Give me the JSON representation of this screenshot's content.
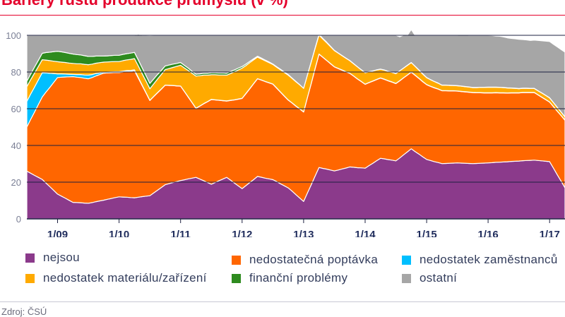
{
  "header": {
    "title": "Bariéry růstu produkce průmyslu (v %)"
  },
  "source": "Zdroj: ČSÚ",
  "colors": {
    "nejsou": "#8b3a8b",
    "poptavka": "#ff6600",
    "zamestnanci": "#00bfff",
    "material": "#ffaa00",
    "financni": "#2e8b1f",
    "ostatni": "#a6a6a6",
    "title": "#e4002b"
  },
  "chart_data": {
    "type": "area",
    "stacked": true,
    "title": "Bariéry růstu produkce průmyslu (v %)",
    "xlabel": "",
    "ylabel": "",
    "ylim": [
      0,
      100
    ],
    "yticks": [
      0,
      20,
      40,
      60,
      80,
      100
    ],
    "grid": true,
    "legend_position": "bottom",
    "x": [
      0,
      0.25,
      0.5,
      0.75,
      1,
      1.25,
      1.5,
      1.75,
      2,
      2.25,
      2.5,
      2.75,
      3,
      3.25,
      3.5,
      3.75,
      4,
      4.25,
      4.5,
      4.75,
      5,
      5.25,
      5.5,
      5.75,
      6,
      6.25,
      6.5,
      6.75,
      7,
      7.25,
      7.5,
      7.75,
      8,
      8.25,
      8.5,
      8.75,
      9,
      9.25,
      9.5,
      9.75,
      10,
      10.25,
      10.5,
      10.75,
      11,
      11.25,
      11.5,
      11.75,
      12,
      12.25,
      12.5,
      12.75,
      13,
      13.25,
      13.5,
      13.75,
      14,
      14.25,
      14.5,
      14.75,
      15,
      15.25,
      15.5,
      15.75,
      16,
      16.25,
      16.5,
      16.75,
      17,
      17.25,
      17.5,
      17.75,
      18,
      18.25,
      18.5,
      18.75,
      19,
      19.25,
      19.5,
      19.75,
      20,
      20.25,
      20.5,
      20.75,
      21,
      21.25,
      21.5,
      21.75,
      22,
      22.25,
      22.5,
      22.75,
      23,
      23.25,
      23.5,
      23.75,
      24,
      24.25,
      24.5,
      24.75,
      25,
      25.25,
      25.5,
      25.75,
      26,
      26.25,
      26.5,
      26.75,
      27,
      27.25,
      27.5,
      27.75,
      28,
      28.25,
      28.5,
      28.75,
      29,
      29.25,
      29.5,
      29.75,
      30,
      30.25,
      30.5,
      30.75,
      31,
      31.25,
      31.5,
      31.75,
      32,
      32.25,
      32.5,
      32.75,
      33,
      33.25,
      33.5,
      33.75,
      34,
      34.25,
      34.5,
      34.75,
      35
    ],
    "xrange": [
      0,
      35
    ],
    "xticks": [
      {
        "x": 2,
        "label": "1/09"
      },
      {
        "x": 6,
        "label": "1/10"
      },
      {
        "x": 10,
        "label": "1/11"
      },
      {
        "x": 14,
        "label": "1/12"
      },
      {
        "x": 18,
        "label": "1/13"
      },
      {
        "x": 22,
        "label": "1/14"
      },
      {
        "x": 26,
        "label": "1/15"
      },
      {
        "x": 30,
        "label": "1/16"
      },
      {
        "x": 34,
        "label": "1/17"
      }
    ],
    "series": [
      {
        "key": "nejsou",
        "name": "nejsou",
        "values": [
          26.0,
          24.9,
          23.7,
          22.6,
          21.5,
          19.5,
          17.5,
          15.5,
          13.5,
          12.4,
          11.3,
          10.1,
          9.0,
          8.9,
          8.8,
          8.6,
          8.5,
          8.9,
          9.4,
          9.8,
          10.2,
          10.7,
          11.1,
          11.6,
          12.0,
          11.9,
          11.8,
          11.6,
          11.5,
          11.8,
          12.1,
          12.4,
          12.6,
          14.1,
          15.6,
          17.1,
          18.6,
          19.2,
          19.8,
          20.3,
          20.9,
          21.3,
          21.8,
          22.2,
          22.6,
          21.7,
          20.8,
          19.8,
          18.9,
          19.8,
          20.8,
          21.7,
          22.6,
          21.1,
          19.5,
          18.0,
          16.5,
          18.1,
          19.8,
          21.4,
          23.1,
          22.7,
          22.2,
          21.8,
          21.4,
          20.3,
          19.1,
          18.0,
          16.9,
          15.1,
          13.2,
          11.4,
          9.5,
          14.1,
          18.7,
          23.4,
          28.0,
          27.5,
          27.1,
          26.6,
          26.1,
          26.6,
          27.2,
          27.7,
          28.3,
          28.1,
          27.9,
          27.8,
          27.6,
          29.0,
          30.3,
          31.7,
          33.0,
          32.7,
          32.3,
          32.0,
          31.6,
          33.2,
          34.9,
          36.5,
          38.2,
          36.7,
          35.3,
          33.8,
          32.4,
          31.8,
          31.2,
          30.7,
          30.1,
          30.2,
          30.3,
          30.4,
          30.5,
          30.4,
          30.3,
          30.2,
          30.1,
          30.2,
          30.3,
          30.4,
          30.5,
          30.6,
          30.8,
          30.9,
          31.0,
          31.1,
          31.3,
          31.4,
          31.5,
          31.7,
          31.8,
          31.9,
          32.0,
          31.8,
          31.6,
          31.4,
          31.2,
          27.6,
          24.0,
          20.5,
          16.9
        ]
      },
      {
        "key": "poptavka",
        "name": "nedostatečná poptávka",
        "values": [
          24.0,
          29.3,
          34.5,
          39.7,
          44.9,
          49.6,
          54.2,
          58.9,
          63.5,
          64.8,
          66.0,
          67.3,
          68.5,
          68.3,
          68.2,
          68.0,
          67.8,
          68.1,
          68.5,
          68.8,
          69.2,
          68.8,
          68.5,
          68.1,
          67.7,
          68.1,
          68.5,
          68.8,
          69.2,
          64.9,
          60.5,
          56.2,
          51.9,
          52.5,
          53.1,
          53.6,
          54.2,
          53.5,
          52.8,
          52.1,
          51.4,
          48.0,
          44.5,
          41.1,
          37.6,
          39.7,
          41.9,
          44.0,
          46.1,
          45.0,
          43.8,
          42.7,
          41.6,
          43.4,
          45.3,
          47.2,
          49.1,
          50.1,
          51.1,
          52.2,
          53.2,
          52.9,
          52.6,
          52.3,
          52.0,
          50.9,
          49.9,
          48.8,
          47.8,
          48.0,
          48.2,
          48.5,
          48.7,
          52.0,
          55.2,
          58.5,
          61.7,
          60.5,
          59.2,
          57.9,
          56.7,
          55.3,
          53.8,
          52.4,
          51.0,
          49.7,
          48.3,
          47.0,
          45.7,
          45.2,
          44.7,
          44.2,
          43.7,
          43.3,
          42.9,
          42.5,
          42.1,
          42.0,
          41.9,
          41.8,
          41.7,
          41.5,
          41.2,
          40.9,
          40.7,
          40.4,
          40.2,
          40.0,
          39.7,
          39.6,
          39.4,
          39.3,
          39.1,
          39.0,
          38.9,
          38.8,
          38.7,
          38.5,
          38.4,
          38.2,
          38.1,
          38.0,
          37.9,
          37.7,
          37.6,
          37.4,
          37.3,
          37.2,
          37.1,
          37.1,
          37.0,
          36.9,
          36.8,
          35.7,
          34.6,
          33.5,
          32.4,
          33.5,
          34.6,
          35.7,
          36.8
        ]
      },
      {
        "key": "zamestnanci",
        "name": "nedostatek zaměstnanců",
        "values": [
          14.0,
          13.8,
          13.6,
          13.4,
          13.2,
          10.4,
          7.6,
          4.8,
          2.0,
          1.8,
          1.6,
          1.4,
          1.2,
          1.4,
          1.6,
          1.8,
          2.0,
          1.6,
          1.3,
          0.9,
          0.5,
          0.5,
          0.5,
          0.5,
          0.5,
          0.5,
          0.5,
          0.5,
          0.5,
          0.4,
          0.3,
          0.2,
          0.1,
          0.1,
          0.1,
          0.1,
          0.1,
          0.1,
          0.1,
          0.1,
          0.1,
          0.1,
          0.1,
          0.1,
          0.1,
          0.1,
          0.1,
          0.1,
          0.1,
          0.1,
          0.1,
          0.1,
          0.1,
          0.1,
          0.1,
          0.1,
          0.1,
          0.1,
          0.1,
          0.1,
          0.1,
          0.1,
          0.1,
          0.1,
          0.1,
          0.1,
          0.1,
          0.1,
          0.1,
          0.1,
          0.1,
          0.1,
          0.1,
          0.1,
          0.1,
          0.1,
          0.1,
          0.1,
          0.1,
          0.1,
          0.1,
          0.1,
          0.1,
          0.1,
          0.1,
          0.1,
          0.1,
          0.1,
          0.1,
          0.1,
          0.1,
          0.1,
          0.1,
          0.1,
          0.1,
          0.1,
          0.1,
          0.1,
          0.1,
          0.1,
          0.1,
          0.1,
          0.1,
          0.1,
          0.1,
          0.1,
          0.1,
          0.1,
          0.1,
          0.1,
          0.1,
          0.1,
          0.1,
          0.1,
          0.1,
          0.1,
          0.1,
          0.1,
          0.1,
          0.1,
          0.1,
          0.1,
          0.1,
          0.1,
          0.1,
          0.1,
          0.1,
          0.1,
          0.1,
          0.1,
          0.1,
          0.1,
          0.1,
          0.1,
          0.1,
          0.1,
          0.1,
          0.1,
          0.1,
          0.1,
          0.1
        ]
      },
      {
        "key": "material",
        "name": "nedostatek materiálu/zařízení",
        "values": [
          8.0,
          7.8,
          7.6,
          7.3,
          7.1,
          7.0,
          6.9,
          6.7,
          6.6,
          6.4,
          6.3,
          6.1,
          6.0,
          5.9,
          5.9,
          5.8,
          5.7,
          5.7,
          5.6,
          5.6,
          5.5,
          5.5,
          5.5,
          5.5,
          5.5,
          5.7,
          5.8,
          6.0,
          6.1,
          6.2,
          6.2,
          6.3,
          6.3,
          6.8,
          7.4,
          7.9,
          8.4,
          9.1,
          9.8,
          10.6,
          11.3,
          12.8,
          14.4,
          15.9,
          17.5,
          16.5,
          15.5,
          14.4,
          13.4,
          13.6,
          13.7,
          13.9,
          14.0,
          14.6,
          15.2,
          15.8,
          16.4,
          15.2,
          14.1,
          12.9,
          11.7,
          11.4,
          11.2,
          10.9,
          10.6,
          11.3,
          12.1,
          12.8,
          13.5,
          13.3,
          13.2,
          13.0,
          12.8,
          12.2,
          11.6,
          10.9,
          10.3,
          9.9,
          9.6,
          9.2,
          8.8,
          8.3,
          7.8,
          7.3,
          6.8,
          6.6,
          6.5,
          6.3,
          6.2,
          5.8,
          5.4,
          5.1,
          4.7,
          4.9,
          5.0,
          5.2,
          5.3,
          5.3,
          5.2,
          5.2,
          5.1,
          4.8,
          4.4,
          4.1,
          3.7,
          3.5,
          3.3,
          3.1,
          2.9,
          2.9,
          2.9,
          2.8,
          2.8,
          2.8,
          2.7,
          2.7,
          2.6,
          2.7,
          2.8,
          2.9,
          3.0,
          3.0,
          2.9,
          2.9,
          2.8,
          2.7,
          2.5,
          2.4,
          2.2,
          2.2,
          2.2,
          2.1,
          2.1,
          2.1,
          2.2,
          2.2,
          2.2,
          2.1,
          2.0,
          1.8,
          1.7
        ]
      },
      {
        "key": "financni",
        "name": "finanční problémy",
        "values": [
          3.0,
          3.1,
          3.3,
          3.4,
          3.5,
          4.1,
          4.6,
          5.2,
          5.7,
          5.6,
          5.4,
          5.3,
          5.1,
          5.0,
          4.8,
          4.7,
          4.5,
          4.2,
          3.9,
          3.6,
          3.3,
          3.3,
          3.4,
          3.4,
          3.4,
          3.4,
          3.4,
          3.4,
          3.4,
          3.3,
          3.2,
          3.0,
          2.9,
          2.7,
          2.5,
          2.2,
          2.0,
          1.9,
          1.8,
          1.6,
          1.5,
          1.4,
          1.3,
          1.1,
          1.0,
          1.0,
          1.1,
          1.1,
          1.1,
          1.1,
          1.1,
          1.1,
          1.1,
          1.1,
          1.0,
          1.0,
          0.9,
          0.8,
          0.7,
          0.6,
          0.5,
          0.5,
          0.4,
          0.4,
          0.3,
          0.3,
          0.3,
          0.3,
          0.3,
          0.2,
          0.2,
          0.1,
          0.0,
          0.1,
          0.2,
          0.3,
          0.4,
          0.3,
          0.3,
          0.2,
          0.1,
          0.1,
          0.1,
          0.1,
          0.1,
          0.1,
          0.1,
          0.1,
          0.1,
          0.1,
          0.1,
          0.1,
          0.1,
          0.1,
          0.1,
          0.1,
          0.1,
          0.1,
          0.1,
          0.1,
          0.1,
          0.1,
          0.1,
          0.1,
          0.1,
          0.1,
          0.1,
          0.1,
          0.1,
          0.1,
          0.1,
          0.1,
          0.1,
          0.1,
          0.1,
          0.1,
          0.1,
          0.1,
          0.1,
          0.1,
          0.1,
          0.1,
          0.1,
          0.1,
          0.1,
          0.1,
          0.1,
          0.1,
          0.1,
          0.1,
          0.1,
          0.1,
          0.1,
          0.1,
          0.1,
          0.1,
          0.1,
          0.1,
          0.1,
          0.1,
          0.1
        ]
      },
      {
        "key": "ostatni",
        "name": "ostatní",
        "values": [
          25.0,
          21.1,
          17.3,
          13.6,
          9.8,
          9.4,
          9.2,
          8.9,
          8.7,
          9.0,
          9.4,
          9.8,
          10.2,
          10.5,
          10.7,
          11.1,
          11.5,
          11.5,
          11.3,
          11.3,
          11.3,
          11.2,
          11.0,
          10.9,
          10.9,
          10.4,
          10.0,
          9.7,
          9.3,
          14.0,
          17.7,
          21.9,
          26.1,
          23.8,
          21.3,
          19.1,
          16.7,
          16.2,
          15.7,
          15.3,
          14.8,
          16.4,
          17.9,
          19.6,
          21.2,
          21.0,
          20.6,
          20.6,
          20.4,
          20.4,
          20.5,
          20.5,
          20.6,
          19.7,
          18.9,
          17.9,
          17.0,
          15.7,
          14.2,
          12.8,
          11.4,
          12.4,
          13.5,
          14.5,
          15.6,
          17.1,
          18.5,
          20.0,
          21.4,
          23.3,
          25.1,
          26.9,
          28.9,
          21.5,
          14.2,
          6.8,
          -0.5,
          1.7,
          3.7,
          6.0,
          8.2,
          9.6,
          11.0,
          12.4,
          13.7,
          15.4,
          17.1,
          18.7,
          20.3,
          19.8,
          19.4,
          18.8,
          18.4,
          18.9,
          19.6,
          20.1,
          20.8,
          18.5,
          17.9,
          16.3,
          17.9,
          16.8,
          18.9,
          21.0,
          23.0,
          24.1,
          25.1,
          26.0,
          27.1,
          27.1,
          27.2,
          27.3,
          27.4,
          27.7,
          28.0,
          28.1,
          28.4,
          28.4,
          28.3,
          28.3,
          28.2,
          28.1,
          27.8,
          27.8,
          27.5,
          27.2,
          27.0,
          26.9,
          26.8,
          26.5,
          26.3,
          26.1,
          26.3,
          27.4,
          28.4,
          29.5,
          30.6,
          31.7,
          32.9,
          34.0,
          35.2
        ]
      }
    ]
  }
}
